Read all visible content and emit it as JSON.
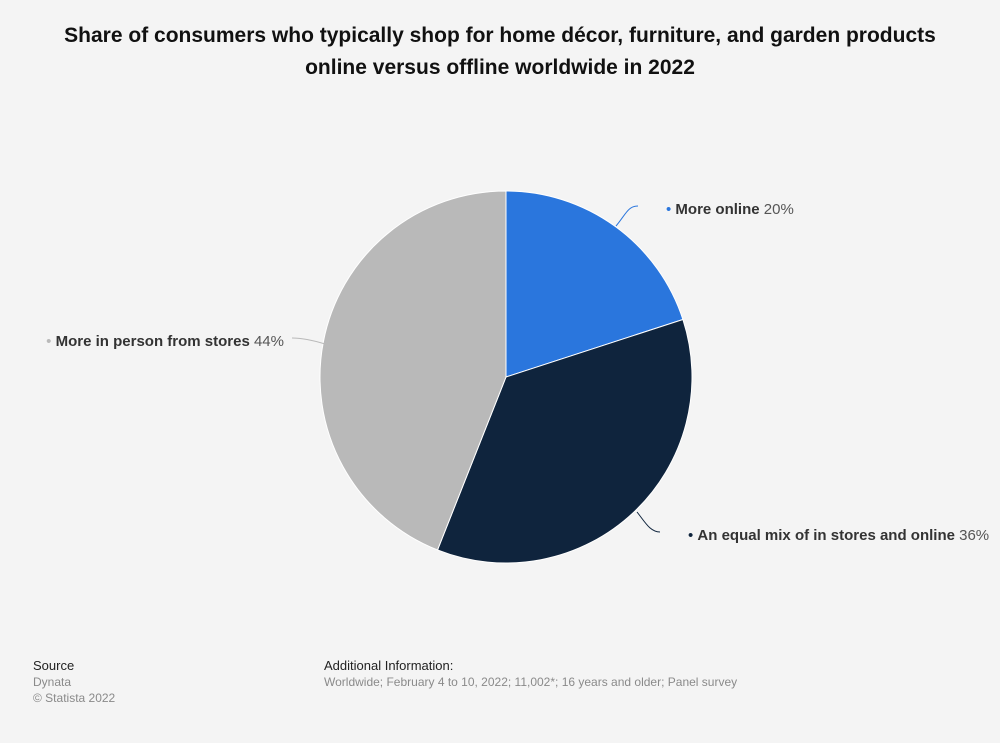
{
  "colors": {
    "background": "#f4f4f4",
    "label_name": "#333333",
    "label_value": "#555555"
  },
  "chart_data": {
    "type": "pie",
    "title": "Share of consumers who typically shop for home décor, furniture, and garden products online versus offline worldwide in 2022",
    "legend": "none",
    "start_angle_deg": 0,
    "direction": "clockwise",
    "slices": [
      {
        "label": "More online",
        "value": 20,
        "value_label": "20%",
        "color": "#2a76dd"
      },
      {
        "label": "An equal mix of in stores and online",
        "value": 36,
        "value_label": "36%",
        "color": "#0f243d"
      },
      {
        "label": "More in person from stores",
        "value": 44,
        "value_label": "44%",
        "color": "#b9b9b9"
      }
    ]
  },
  "footer": {
    "source_heading": "Source",
    "source_name": "Dynata",
    "copyright": "© Statista 2022",
    "info_heading": "Additional Information:",
    "info_text": "Worldwide; February 4 to 10, 2022; 11,002*; 16 years and older; Panel survey"
  }
}
